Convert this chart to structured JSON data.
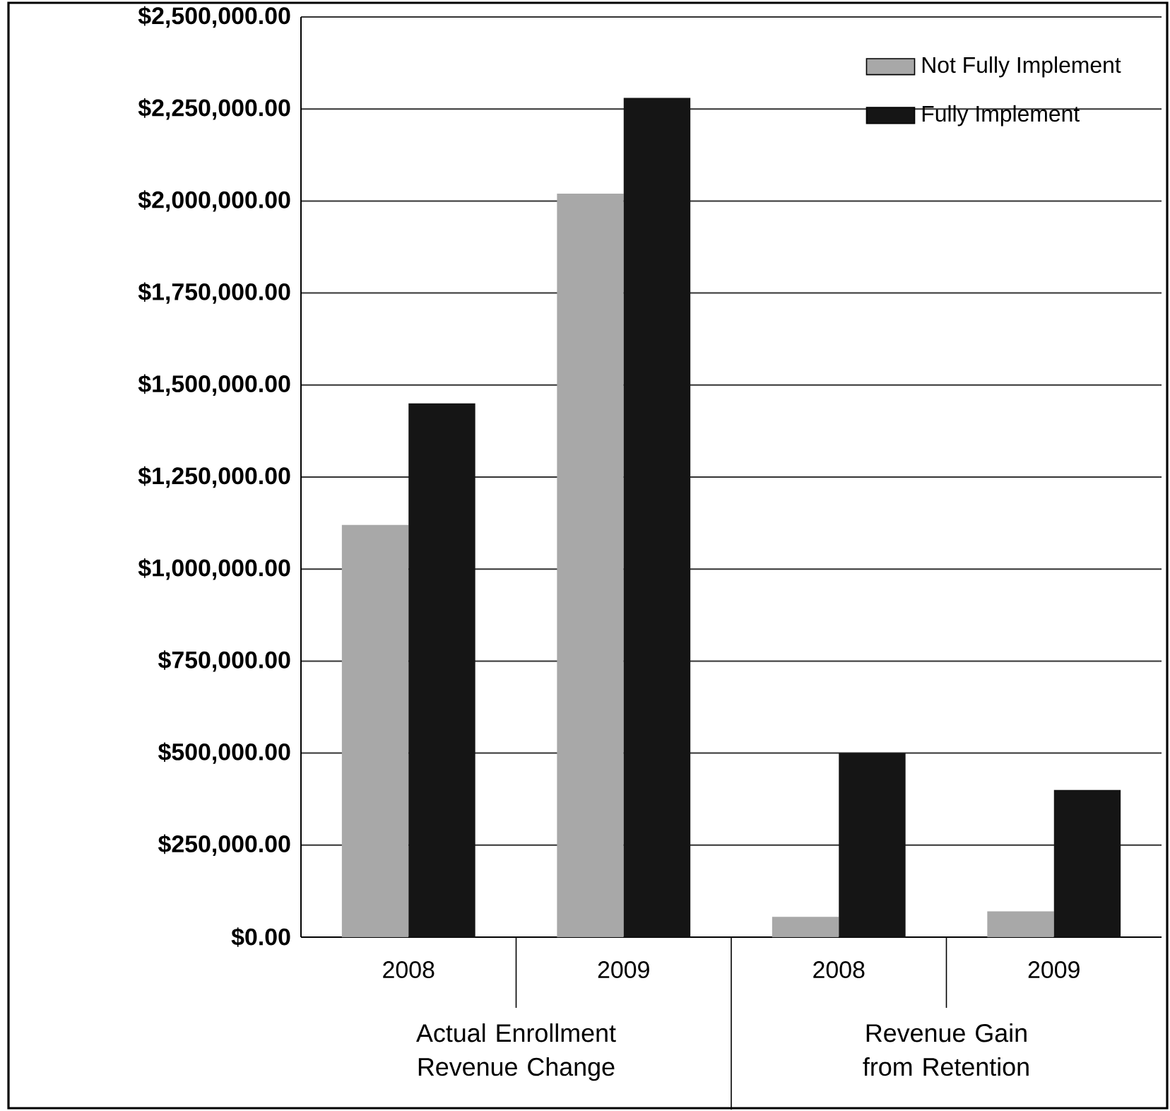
{
  "chart_data": {
    "type": "bar",
    "categories": [
      "2008",
      "2009",
      "2008",
      "2009"
    ],
    "series": [
      {
        "name": "Not Fully Implement",
        "color": "#a8a8a8",
        "values": [
          1120000,
          2020000,
          55000,
          70000
        ]
      },
      {
        "name": "Fully Implement",
        "color": "#151515",
        "values": [
          1450000,
          2280000,
          500000,
          400000
        ]
      }
    ],
    "ylim": [
      0,
      2500000
    ],
    "yticks": [
      {
        "value": 0,
        "label": "$0.00"
      },
      {
        "value": 250000,
        "label": "$250,000.00"
      },
      {
        "value": 500000,
        "label": "$500,000.00"
      },
      {
        "value": 750000,
        "label": "$750,000.00"
      },
      {
        "value": 1000000,
        "label": "$1,000,000.00"
      },
      {
        "value": 1250000,
        "label": "$1,250,000.00"
      },
      {
        "value": 1500000,
        "label": "$1,500,000.00"
      },
      {
        "value": 1750000,
        "label": "$1,750,000.00"
      },
      {
        "value": 2000000,
        "label": "$2,000,000.00"
      },
      {
        "value": 2250000,
        "label": "$2,250,000.00"
      },
      {
        "value": 2500000,
        "label": "$2,500,000.00"
      }
    ],
    "grid": "y",
    "legend": "top right",
    "annotations": [
      "Actual Enrollment Revenue Change",
      "Revenue Gain from Retention"
    ]
  }
}
